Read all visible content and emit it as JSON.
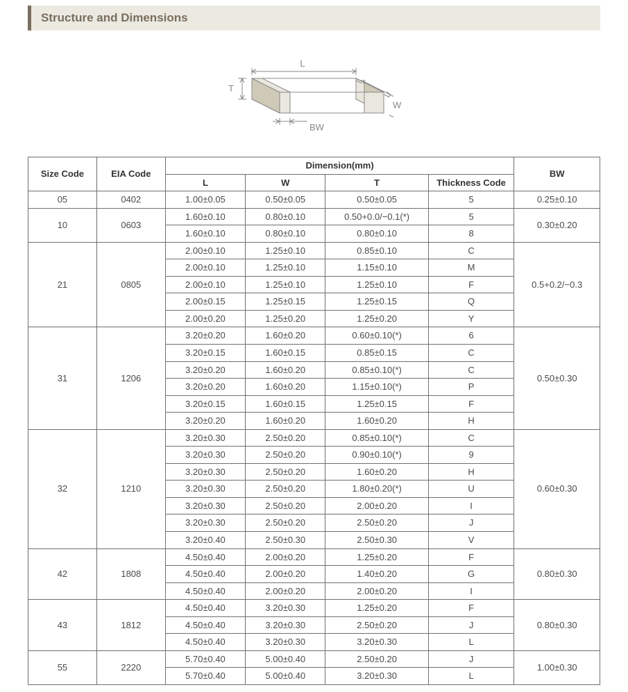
{
  "section_title": "Structure and Dimensions",
  "diagram_labels": {
    "L": "L",
    "W": "W",
    "T": "T",
    "BW": "BW"
  },
  "header": {
    "size_code": "Size Code",
    "eia_code": "EIA Code",
    "dimension_group": "Dimension(mm)",
    "L": "L",
    "W": "W",
    "T": "T",
    "thickness_code": "Thickness Code",
    "BW": "BW"
  },
  "colors": {
    "header_bg": "#ece9e1",
    "header_accent": "#7a6f5f",
    "border": "#6f6f6f",
    "text": "#4a4a4a",
    "diagram_stroke": "#888888",
    "diagram_shade": "#eae7de",
    "diagram_dark": "#cfc9b8"
  },
  "groups": [
    {
      "size_code": "05",
      "eia_code": "0402",
      "bw": "0.25±0.10",
      "rows": [
        {
          "L": "1.00±0.05",
          "W": "0.50±0.05",
          "T": "0.50±0.05",
          "tc": "5"
        }
      ]
    },
    {
      "size_code": "10",
      "eia_code": "0603",
      "bw": "0.30±0.20",
      "rows": [
        {
          "L": "1.60±0.10",
          "W": "0.80±0.10",
          "T": "0.50+0.0/−0.1(*)",
          "tc": "5"
        },
        {
          "L": "1.60±0.10",
          "W": "0.80±0.10",
          "T": "0.80±0.10",
          "tc": "8"
        }
      ]
    },
    {
      "size_code": "21",
      "eia_code": "0805",
      "bw": "0.5+0.2/−0.3",
      "rows": [
        {
          "L": "2.00±0.10",
          "W": "1.25±0.10",
          "T": "0.85±0.10",
          "tc": "C"
        },
        {
          "L": "2.00±0.10",
          "W": "1.25±0.10",
          "T": "1.15±0.10",
          "tc": "M"
        },
        {
          "L": "2.00±0.10",
          "W": "1.25±0.10",
          "T": "1.25±0.10",
          "tc": "F"
        },
        {
          "L": "2.00±0.15",
          "W": "1.25±0.15",
          "T": "1.25±0.15",
          "tc": "Q"
        },
        {
          "L": "2.00±0.20",
          "W": "1.25±0.20",
          "T": "1.25±0.20",
          "tc": "Y"
        }
      ]
    },
    {
      "size_code": "31",
      "eia_code": "1206",
      "bw": "0.50±0.30",
      "rows": [
        {
          "L": "3.20±0.20",
          "W": "1.60±0.20",
          "T": "0.60±0.10(*)",
          "tc": "6"
        },
        {
          "L": "3.20±0.15",
          "W": "1.60±0.15",
          "T": "0.85±0.15",
          "tc": "C"
        },
        {
          "L": "3.20±0.20",
          "W": "1.60±0.20",
          "T": "0.85±0.10(*)",
          "tc": "C"
        },
        {
          "L": "3.20±0.20",
          "W": "1.60±0.20",
          "T": "1.15±0.10(*)",
          "tc": "P"
        },
        {
          "L": "3.20±0.15",
          "W": "1.60±0.15",
          "T": "1.25±0.15",
          "tc": "F"
        },
        {
          "L": "3.20±0.20",
          "W": "1.60±0.20",
          "T": "1.60±0.20",
          "tc": "H"
        }
      ]
    },
    {
      "size_code": "32",
      "eia_code": "1210",
      "bw": "0.60±0.30",
      "rows": [
        {
          "L": "3.20±0.30",
          "W": "2.50±0.20",
          "T": "0.85±0.10(*)",
          "tc": "C"
        },
        {
          "L": "3.20±0.30",
          "W": "2.50±0.20",
          "T": "0.90±0.10(*)",
          "tc": "9"
        },
        {
          "L": "3.20±0.30",
          "W": "2.50±0.20",
          "T": "1.60±0.20",
          "tc": "H"
        },
        {
          "L": "3.20±0.30",
          "W": "2.50±0.20",
          "T": "1.80±0.20(*)",
          "tc": "U"
        },
        {
          "L": "3.20±0.30",
          "W": "2.50±0.20",
          "T": "2.00±0.20",
          "tc": "I"
        },
        {
          "L": "3.20±0.30",
          "W": "2.50±0.20",
          "T": "2.50±0.20",
          "tc": "J"
        },
        {
          "L": "3.20±0.40",
          "W": "2.50±0.30",
          "T": "2.50±0.30",
          "tc": "V"
        }
      ]
    },
    {
      "size_code": "42",
      "eia_code": "1808",
      "bw": "0.80±0.30",
      "rows": [
        {
          "L": "4.50±0.40",
          "W": "2.00±0.20",
          "T": "1.25±0.20",
          "tc": "F"
        },
        {
          "L": "4.50±0.40",
          "W": "2.00±0.20",
          "T": "1.40±0.20",
          "tc": "G"
        },
        {
          "L": "4.50±0.40",
          "W": "2.00±0.20",
          "T": "2.00±0.20",
          "tc": "I"
        }
      ]
    },
    {
      "size_code": "43",
      "eia_code": "1812",
      "bw": "0.80±0.30",
      "rows": [
        {
          "L": "4.50±0.40",
          "W": "3.20±0.30",
          "T": "1.25±0.20",
          "tc": "F"
        },
        {
          "L": "4.50±0.40",
          "W": "3.20±0.30",
          "T": "2.50±0.20",
          "tc": "J"
        },
        {
          "L": "4.50±0.40",
          "W": "3.20±0.30",
          "T": "3.20±0.30",
          "tc": "L"
        }
      ]
    },
    {
      "size_code": "55",
      "eia_code": "2220",
      "bw": "1.00±0.30",
      "rows": [
        {
          "L": "5.70±0.40",
          "W": "5.00±0.40",
          "T": "2.50±0.20",
          "tc": "J"
        },
        {
          "L": "5.70±0.40",
          "W": "5.00±0.40",
          "T": "3.20±0.30",
          "tc": "L"
        }
      ]
    }
  ]
}
